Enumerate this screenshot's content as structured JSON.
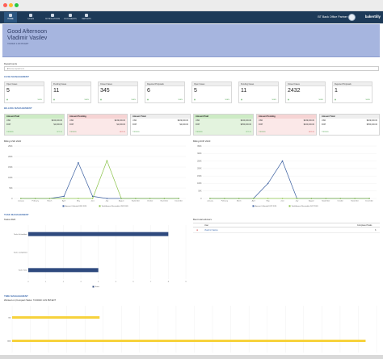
{
  "nav": {
    "items": [
      {
        "label": "HOME",
        "active": true
      },
      {
        "label": "CASES",
        "active": false
      },
      {
        "label": "NOTIFICATIONS",
        "active": false
      },
      {
        "label": "DOCUMENTS",
        "active": false
      },
      {
        "label": "REPORTS",
        "active": false
      }
    ],
    "partner": "BT Back Office Partner",
    "brand": "bakertilly"
  },
  "hero": {
    "greeting": "Good Afternoon",
    "name": "Vladimir Vasilev",
    "datetime": "7/3/2020 1:29 PM EDT"
  },
  "departments": {
    "label": "Departments",
    "placeholder": "Choose department"
  },
  "sections": {
    "case": "CASE MANAGEMENT",
    "billing": "BILLING MANAGEMENT",
    "task": "TASK MANAGEMENT",
    "time": "TIME MANAGEMENT"
  },
  "cases": [
    {
      "label": "Open Cases",
      "value": "5",
      "pct": "100%"
    },
    {
      "label": "Pending Cases",
      "value": "11",
      "pct": "100%"
    },
    {
      "label": "Closed Cases",
      "value": "345",
      "pct": "100%"
    },
    {
      "label": "Rejected Proposals",
      "value": "6",
      "pct": "100%"
    },
    {
      "label": "Open Cases",
      "value": "5",
      "pct": "100%"
    },
    {
      "label": "Pending Cases",
      "value": "11",
      "pct": "100%"
    },
    {
      "label": "Closed Cases",
      "value": "2432",
      "pct": "100%"
    },
    {
      "label": "Rejected Proposals",
      "value": "1",
      "pct": "100%"
    }
  ],
  "billing_cards": [
    {
      "label": "Amount Paid",
      "style": "green",
      "rows": [
        {
          "cur": "USD",
          "amt": "$160,000.00"
        },
        {
          "cur": "DOP",
          "amt": "$1,000.00"
        }
      ],
      "footer": "7/3/2020",
      "pct": "37.5 %"
    },
    {
      "label": "Amount Pending",
      "style": "red",
      "rows": [
        {
          "cur": "USD",
          "amt": "$249,000.00"
        },
        {
          "cur": "DOP",
          "amt": "$1,000.00"
        }
      ],
      "footer": "7/3/2020",
      "pct": "62.5 %"
    },
    {
      "label": "Amount Total",
      "style": "plain",
      "rows": [
        {
          "cur": "USD",
          "amt": "$409,000.00"
        },
        {
          "cur": "DOP",
          "amt": "$2,000.00"
        }
      ],
      "footer": "7/3/2020",
      "pct": ""
    },
    {
      "label": "Amount Paid",
      "style": "green",
      "rows": [
        {
          "cur": "USD",
          "amt": "$160,000.00"
        },
        {
          "cur": "DOP",
          "amt": "$250,000.00"
        }
      ],
      "footer": "7/3/2020",
      "pct": "37.5 %"
    },
    {
      "label": "Amount Pending",
      "style": "red",
      "rows": [
        {
          "cur": "USD",
          "amt": "$249,000.00"
        },
        {
          "cur": "DOP",
          "amt": "$100,000.00"
        }
      ],
      "footer": "7/3/2020",
      "pct": "62.5 %"
    },
    {
      "label": "Amount Total",
      "style": "plain",
      "rows": [
        {
          "cur": "USD",
          "amt": "$409,000.00"
        },
        {
          "cur": "DOP",
          "amt": "$350,000.00"
        }
      ],
      "footer": "7/3/2020",
      "pct": ""
    }
  ],
  "side_panel": {
    "title": "Best total advisors",
    "col_user": "User",
    "col_tasks": "Completed Tasks",
    "row_name": "Vladimir Vasilev",
    "row_value": "3"
  },
  "colors": {
    "nav": "#1d3a58",
    "hero": "#a6b5df",
    "line_blue": "#3b5fa0",
    "line_green": "#8bc34a",
    "bar_navy": "#2f4a7e",
    "bar_yellow": "#f7d23c"
  },
  "chart_data": [
    {
      "type": "line",
      "title": "Billing USD 2020",
      "categories": [
        "January",
        "February",
        "March",
        "April",
        "May",
        "June",
        "July",
        "August",
        "September",
        "October",
        "November",
        "December"
      ],
      "ylim": [
        0,
        250000
      ],
      "yticks": [
        "0",
        "50K",
        "100K",
        "150K",
        "200K",
        "250K"
      ],
      "series": [
        {
          "name": "Amount Collected USD 2020",
          "color": "#3b5fa0",
          "values": [
            0,
            0,
            0,
            10000,
            170000,
            10000,
            0,
            0,
            0,
            0,
            0,
            0
          ]
        },
        {
          "name": "Total Amount Receivable USD 2020",
          "color": "#8bc34a",
          "values": [
            0,
            0,
            0,
            0,
            0,
            0,
            180000,
            0,
            0,
            0,
            0,
            0
          ]
        }
      ]
    },
    {
      "type": "line",
      "title": "Billing DOP 2020",
      "categories": [
        "January",
        "February",
        "March",
        "April",
        "May",
        "June",
        "July",
        "August",
        "September",
        "October",
        "November",
        "December"
      ],
      "ylim": [
        0,
        350000
      ],
      "yticks": [
        "0",
        "50K",
        "100K",
        "150K",
        "200K",
        "250K",
        "300K",
        "350K"
      ],
      "series": [
        {
          "name": "Amount Collected DOP 2020",
          "color": "#3b5fa0",
          "values": [
            0,
            0,
            0,
            0,
            100000,
            250000,
            0,
            0,
            0,
            0,
            0,
            0
          ]
        },
        {
          "name": "Total Amount Receivable DOP 2020",
          "color": "#8bc34a",
          "values": [
            0,
            0,
            0,
            0,
            0,
            0,
            0,
            0,
            0,
            0,
            0,
            0
          ]
        }
      ]
    },
    {
      "type": "bar",
      "orientation": "horizontal",
      "title": "Tasks 2020",
      "categories": [
        "Tasks Scheduled",
        "Tasks Completed",
        "Tasks Total"
      ],
      "xlim": [
        0,
        9
      ],
      "xticks": [
        "0",
        "1",
        "2",
        "3",
        "4",
        "5",
        "6",
        "7",
        "8",
        "9"
      ],
      "series": [
        {
          "name": "Tasks",
          "color": "#2f4a7e",
          "values": [
            8,
            0,
            4
          ]
        }
      ]
    },
    {
      "type": "bar",
      "orientation": "horizontal",
      "title": "Worked on (Compact Tasks: 7/3/2020 1:29 PM EDT",
      "categories": [
        "BD",
        "BBB"
      ],
      "series": [
        {
          "name": "",
          "color": "#f7d23c",
          "values": [
            24,
            97
          ]
        }
      ]
    }
  ]
}
